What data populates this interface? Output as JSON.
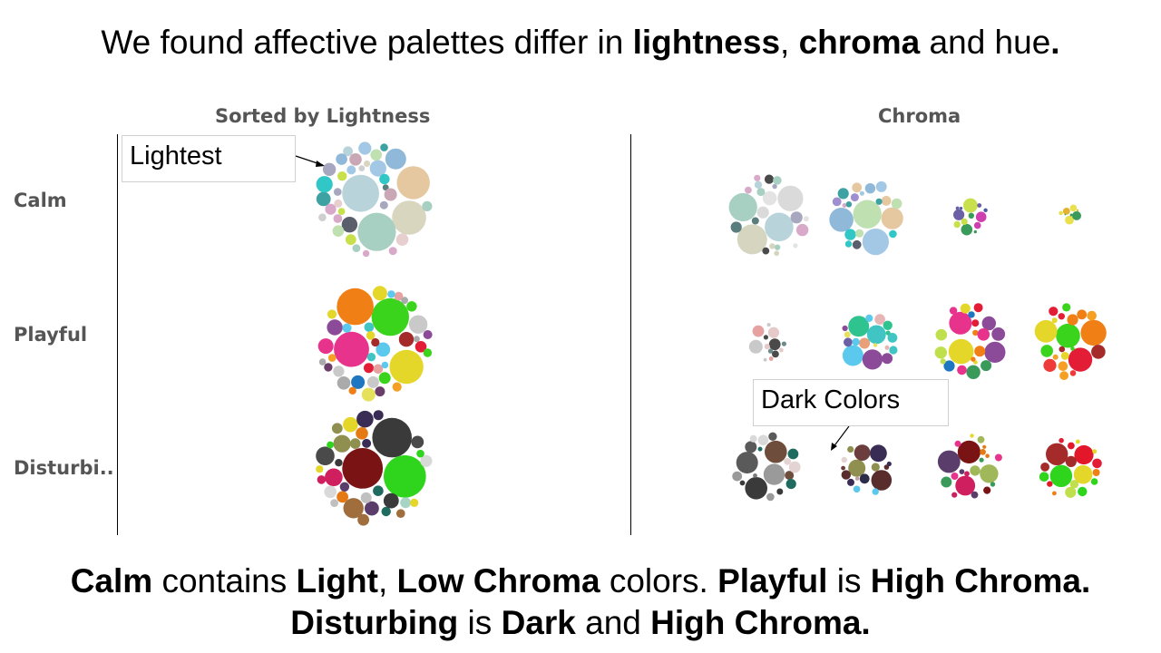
{
  "headline": {
    "text_1": "We found affective palettes differ in ",
    "bold_1": "lightness",
    "text_2": ", ",
    "bold_2": "chroma",
    "text_3": " and hue",
    "bold_3": "."
  },
  "chart_data": [
    {
      "type": "packed-bubble",
      "title": "Sorted by Lightness",
      "rows": [
        "Calm",
        "Playful",
        "Disturbi.."
      ],
      "annotation": "Lightest",
      "clusters": [
        {
          "row": "Calm",
          "palette": [
            "#b9d3da",
            "#d9d6c0",
            "#a8d0c2",
            "#e5c7a0",
            "#cfcfcf",
            "#d9a9c9",
            "#a3c8e6",
            "#bfe0b0",
            "#a7a7bf",
            "#c9a7b5",
            "#8fb8d9",
            "#e8cfcf",
            "#5a7d7d",
            "#c8e04c",
            "#3fa2a2",
            "#31c7c7",
            "#5b5f6b",
            "#e2d2aa"
          ]
        },
        {
          "row": "Playful",
          "palette": [
            "#3bd41c",
            "#e8338c",
            "#e5d62a",
            "#f07f15",
            "#e31d36",
            "#5bc8ee",
            "#8c4b99",
            "#e5e15a",
            "#41c4c4",
            "#a52a2a",
            "#1f76c1",
            "#f5a025",
            "#e6a1a1",
            "#c9c9c9",
            "#6b3d6b",
            "#aaaaaa"
          ]
        },
        {
          "row": "Disturbi..",
          "palette": [
            "#7a1414",
            "#3a3a3a",
            "#2fd41c",
            "#e3172a",
            "#a06e3c",
            "#8f8f4f",
            "#cf1f5f",
            "#5b3d6b",
            "#1f6b5f",
            "#e5d62a",
            "#4a4a4a",
            "#d9d9d9",
            "#e57a14",
            "#a7d4c4",
            "#3a2d55",
            "#c0c0c0"
          ]
        }
      ]
    },
    {
      "type": "packed-bubble",
      "title": "Chroma",
      "rows": [
        "Calm",
        "Playful",
        "Disturbi.."
      ],
      "columns_per_row": 4,
      "annotation": "Dark Colors",
      "clusters": [
        {
          "row": "Calm",
          "col": 1,
          "palette": [
            "#a8d0c2",
            "#d5d5c0",
            "#dadada",
            "#b9d3da",
            "#a7a7bf",
            "#d9a9c9",
            "#e3e3e3",
            "#5a7d7d",
            "#4a4a4a"
          ]
        },
        {
          "row": "Calm",
          "col": 2,
          "palette": [
            "#bfe0b0",
            "#e5c7a0",
            "#a3c8e6",
            "#8fb8d9",
            "#9f8fcf",
            "#31c7c7",
            "#3fa2a2",
            "#5b5f6b",
            "#d9a9c9"
          ]
        },
        {
          "row": "Calm",
          "col": 3,
          "palette": [
            "#6b5fa5",
            "#c8e04c",
            "#3a9a5a",
            "#cf3fb0",
            "#4a5aa0"
          ]
        },
        {
          "row": "Calm",
          "col": 4,
          "palette": [
            "#e8e04c",
            "#3a9a5a",
            "#e3b230"
          ]
        },
        {
          "row": "Playful",
          "col": 1,
          "palette": [
            "#e6c9c9",
            "#c9c9c9",
            "#4a4a4a",
            "#e6a1a1",
            "#6b8b8b"
          ]
        },
        {
          "row": "Playful",
          "col": 2,
          "palette": [
            "#5bc8ee",
            "#41c4c4",
            "#8c4b99",
            "#2fc48f",
            "#e5e15a",
            "#e8a07a",
            "#6b5fa5",
            "#e6b5b5"
          ]
        },
        {
          "row": "Playful",
          "col": 3,
          "palette": [
            "#e8338c",
            "#e5d62a",
            "#8c4b99",
            "#1f76c1",
            "#f07f15",
            "#bfe04c",
            "#3a9a5a",
            "#e31d36"
          ]
        },
        {
          "row": "Playful",
          "col": 4,
          "palette": [
            "#3bd41c",
            "#e31d36",
            "#f07f15",
            "#e5d62a",
            "#f5a025",
            "#a52a2a",
            "#ef3a3a"
          ]
        },
        {
          "row": "Disturbi..",
          "col": 1,
          "palette": [
            "#3a3a3a",
            "#5a5a5a",
            "#9a9a9a",
            "#6e4d3c",
            "#d9d9d9",
            "#1f6b5f",
            "#e3d3d3",
            "#7a7a7a"
          ]
        },
        {
          "row": "Disturbi..",
          "col": 2,
          "palette": [
            "#5a2d2d",
            "#8f8f4f",
            "#3a2d55",
            "#6b3d3d",
            "#5bc8ee",
            "#e3d3d3",
            "#2d2d4a",
            "#c0a0a0"
          ]
        },
        {
          "row": "Disturbi..",
          "col": 3,
          "palette": [
            "#7a1414",
            "#a0b85a",
            "#cf1f5f",
            "#5b3d6b",
            "#e57a14",
            "#3a9a5a",
            "#e8338c",
            "#e5d62a"
          ]
        },
        {
          "row": "Disturbi..",
          "col": 4,
          "palette": [
            "#2fd41c",
            "#e3172a",
            "#a52a2a",
            "#e5d62a",
            "#f07f15",
            "#e31d36",
            "#bfe04c"
          ]
        }
      ]
    }
  ],
  "footer": {
    "line1_b1": "Calm",
    "line1_t1": " contains ",
    "line1_b2": "Light",
    "line1_t2": ", ",
    "line1_b3": "Low Chroma",
    "line1_t3": " colors. ",
    "line1_b4": "Playful",
    "line1_t4": " is ",
    "line1_b5": "High Chroma.",
    "line2_b1": "Disturbing",
    "line2_t1": " is ",
    "line2_b2": "Dark",
    "line2_t2": " and ",
    "line2_b3": "High Chroma."
  }
}
